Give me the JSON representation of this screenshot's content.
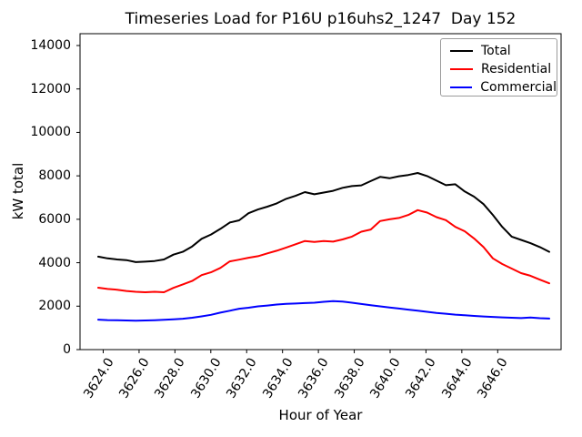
{
  "chart_data": {
    "type": "line",
    "title": "Timeseries Load for P16U p16uhs2_1247  Day 152",
    "xlabel": "Hour of Year",
    "ylabel": "kW total",
    "legend_position": "upper right",
    "grid": false,
    "xlim": [
      3622.7,
      3649.6
    ],
    "ylim": [
      0,
      14550
    ],
    "x_tick_values": [
      3624,
      3626,
      3628,
      3630,
      3632,
      3634,
      3636,
      3638,
      3640,
      3642,
      3644,
      3646
    ],
    "x_tick_labels": [
      "3624.0",
      "3626.0",
      "3628.0",
      "3630.0",
      "3632.0",
      "3634.0",
      "3636.0",
      "3638.0",
      "3640.0",
      "3642.0",
      "3644.0",
      "3646.0"
    ],
    "y_tick_values": [
      0,
      2000,
      4000,
      6000,
      8000,
      10000,
      12000,
      14000
    ],
    "y_tick_labels": [
      "0",
      "2000",
      "4000",
      "6000",
      "8000",
      "10000",
      "12000",
      "14000"
    ],
    "x": [
      3624,
      3624.5,
      3625,
      3625.5,
      3626,
      3626.5,
      3627,
      3627.5,
      3628,
      3628.5,
      3629,
      3629.5,
      3630,
      3630.5,
      3631,
      3631.5,
      3632,
      3632.5,
      3633,
      3633.5,
      3634,
      3634.5,
      3635,
      3635.5,
      3636,
      3636.5,
      3637,
      3637.5,
      3638,
      3638.5,
      3639,
      3639.5,
      3640,
      3640.5,
      3641,
      3641.5,
      3642,
      3642.5,
      3643,
      3643.5,
      3644,
      3644.5,
      3645,
      3645.5,
      3646,
      3646.5,
      3647,
      3647.5,
      3648
    ],
    "series": [
      {
        "name": "Total",
        "color": "#000000",
        "values": [
          4280,
          4200,
          4150,
          4120,
          4030,
          4050,
          4080,
          4150,
          4370,
          4500,
          4750,
          5100,
          5300,
          5560,
          5850,
          5950,
          6280,
          6450,
          6580,
          6730,
          6940,
          7080,
          7250,
          7150,
          7230,
          7310,
          7450,
          7530,
          7560,
          7760,
          7950,
          7890,
          7980,
          8040,
          8130,
          7990,
          7780,
          7570,
          7610,
          7280,
          7040,
          6700,
          6200,
          5650,
          5200,
          5050,
          4900,
          4720,
          4500
        ]
      },
      {
        "name": "Residential",
        "color": "#ff0000",
        "values": [
          2850,
          2790,
          2760,
          2700,
          2660,
          2640,
          2660,
          2640,
          2840,
          3000,
          3160,
          3430,
          3560,
          3760,
          4060,
          4140,
          4230,
          4300,
          4430,
          4550,
          4700,
          4850,
          5000,
          4960,
          5000,
          4970,
          5070,
          5200,
          5430,
          5530,
          5920,
          6000,
          6060,
          6200,
          6420,
          6310,
          6100,
          5960,
          5650,
          5450,
          5120,
          4720,
          4200,
          3940,
          3730,
          3520,
          3400,
          3220,
          3050
        ]
      },
      {
        "name": "Commercial",
        "color": "#0000ff",
        "values": [
          1380,
          1360,
          1350,
          1340,
          1330,
          1340,
          1355,
          1370,
          1390,
          1420,
          1465,
          1530,
          1600,
          1700,
          1790,
          1880,
          1930,
          1990,
          2030,
          2075,
          2105,
          2120,
          2140,
          2160,
          2200,
          2230,
          2210,
          2160,
          2100,
          2040,
          1990,
          1940,
          1890,
          1840,
          1790,
          1740,
          1690,
          1650,
          1610,
          1580,
          1550,
          1525,
          1505,
          1485,
          1465,
          1450,
          1475,
          1445,
          1430
        ]
      }
    ]
  }
}
